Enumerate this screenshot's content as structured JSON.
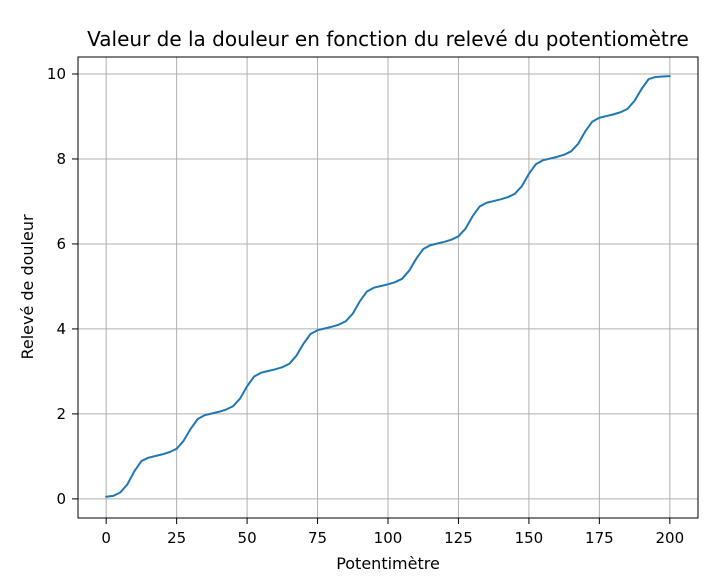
{
  "chart_data": {
    "type": "line",
    "title": "Valeur de la douleur en fonction du relevé du potentiomètre",
    "xlabel": "Potentimètre",
    "ylabel": "Relevé de douleur",
    "xlim": [
      -10,
      210
    ],
    "ylim": [
      -0.45,
      10.4
    ],
    "x_ticks": [
      0,
      25,
      50,
      75,
      100,
      125,
      150,
      175,
      200
    ],
    "y_ticks": [
      0,
      2,
      4,
      6,
      8,
      10
    ],
    "grid": true,
    "series": [
      {
        "color": "#1f77b4",
        "x": [
          0,
          2.5,
          5,
          7.5,
          10,
          12.5,
          15,
          17.5,
          20,
          22.5,
          25,
          27.5,
          30,
          32.5,
          35,
          37.5,
          40,
          42.5,
          45,
          47.5,
          50,
          52.5,
          55,
          57.5,
          60,
          62.5,
          65,
          67.5,
          70,
          72.5,
          75,
          77.5,
          80,
          82.5,
          85,
          87.5,
          90,
          92.5,
          95,
          97.5,
          100,
          102.5,
          105,
          107.5,
          110,
          112.5,
          115,
          117.5,
          120,
          122.5,
          125,
          127.5,
          130,
          132.5,
          135,
          137.5,
          140,
          142.5,
          145,
          147.5,
          150,
          152.5,
          155,
          157.5,
          160,
          162.5,
          165,
          167.5,
          170,
          172.5,
          175,
          177.5,
          180,
          182.5,
          185,
          187.5,
          190,
          192.5,
          195,
          197.5,
          200
        ],
        "y": [
          0.05,
          0.07,
          0.15,
          0.34,
          0.65,
          0.89,
          0.97,
          1.01,
          1.05,
          1.1,
          1.18,
          1.37,
          1.65,
          1.88,
          1.97,
          2.01,
          2.05,
          2.1,
          2.18,
          2.36,
          2.65,
          2.88,
          2.97,
          3.01,
          3.05,
          3.1,
          3.18,
          3.37,
          3.65,
          3.88,
          3.97,
          4.01,
          4.05,
          4.1,
          4.18,
          4.36,
          4.65,
          4.88,
          4.97,
          5.01,
          5.05,
          5.1,
          5.18,
          5.37,
          5.65,
          5.88,
          5.97,
          6.01,
          6.05,
          6.1,
          6.18,
          6.36,
          6.65,
          6.88,
          6.97,
          7.01,
          7.05,
          7.1,
          7.18,
          7.36,
          7.65,
          7.88,
          7.97,
          8.01,
          8.05,
          8.1,
          8.18,
          8.36,
          8.65,
          8.88,
          8.97,
          9.01,
          9.05,
          9.1,
          9.18,
          9.37,
          9.65,
          9.88,
          9.93,
          9.94,
          9.95
        ]
      }
    ]
  }
}
